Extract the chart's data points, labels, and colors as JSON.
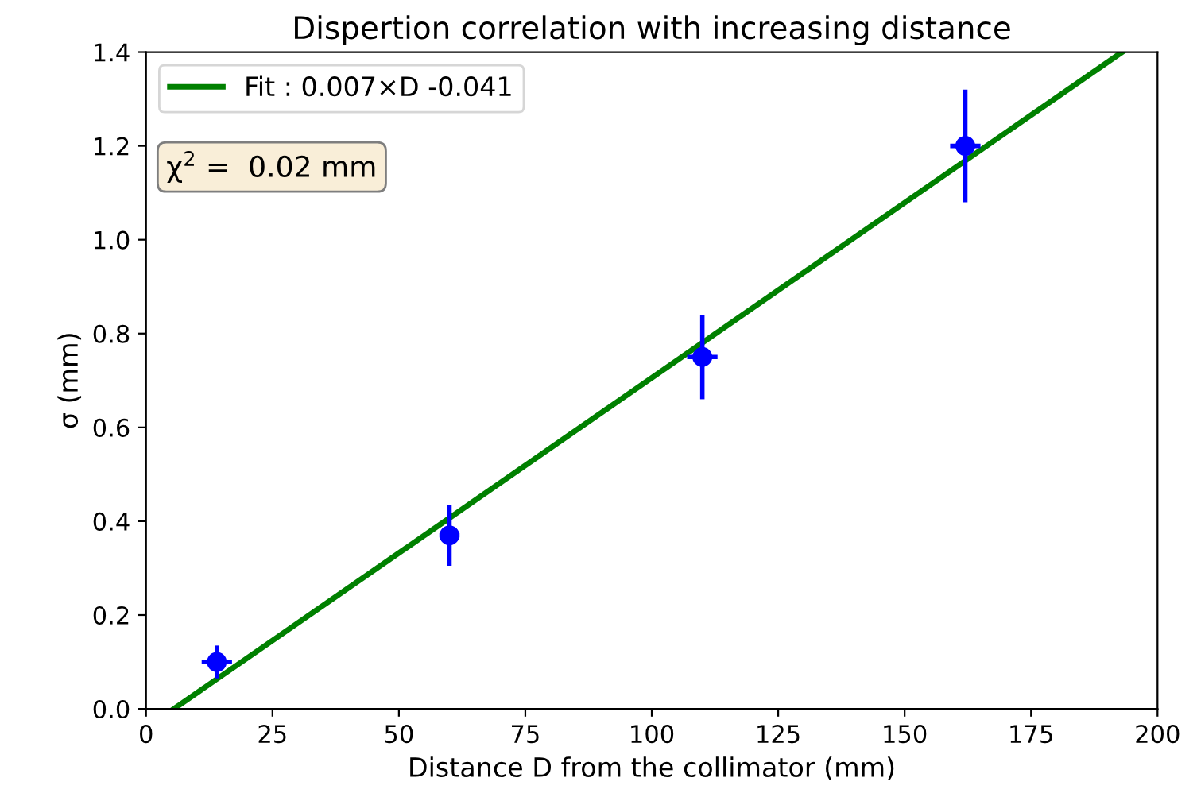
{
  "chart_data": {
    "type": "scatter",
    "title": "Dispertion correlation with increasing distance",
    "xlabel": "Distance D from the collimator (mm)",
    "ylabel": "σ (mm)",
    "xlim": [
      0,
      200
    ],
    "ylim": [
      0,
      1.4
    ],
    "xticks": [
      0,
      25,
      50,
      75,
      100,
      125,
      150,
      175,
      200
    ],
    "yticks": [
      {
        "value": 0,
        "label": "0.0"
      },
      0.2,
      0.4,
      0.6,
      0.8,
      {
        "value": 1,
        "label": "1.0"
      },
      1.2,
      1.4
    ],
    "series": [
      {
        "color": "#0000ff",
        "x": [
          14,
          60,
          110,
          162
        ],
        "values": [
          0.1,
          0.37,
          0.75,
          1.2
        ],
        "errors": [
          0.035,
          0.065,
          0.09,
          0.12
        ],
        "xerrors": [
          3,
          2,
          3,
          3
        ],
        "marker": "circle"
      },
      {
        "type": "line",
        "name": "Fit : 0.007×D -0.041",
        "color": "#008000",
        "x": [
          5.5,
          193
        ],
        "values": [
          0.0,
          1.4
        ],
        "marker": "none",
        "line_style": "solid"
      }
    ],
    "annotations": [
      "χ$^{2}$ =  0.02 mm"
    ],
    "legend": "top left",
    "grid": false
  }
}
